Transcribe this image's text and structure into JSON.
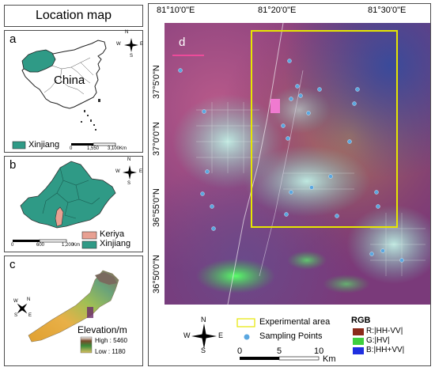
{
  "title": "Location map",
  "panel_a": {
    "letter": "a",
    "country_label": "China",
    "legend_label": "Xinjiang",
    "scale_ticks": [
      "0",
      "1,550",
      "3,100"
    ],
    "scale_unit": "Km",
    "compass": {
      "n": "N",
      "s": "S",
      "e": "E",
      "w": "W"
    }
  },
  "panel_b": {
    "letter": "b",
    "legend": [
      {
        "label": "Keriya",
        "color": "#e8a092"
      },
      {
        "label": "Xinjiang",
        "color": "#2f9a86"
      }
    ],
    "scale_ticks": [
      "0",
      "600",
      "1,200"
    ],
    "scale_unit": "Km",
    "compass": {
      "n": "N",
      "s": "S",
      "e": "E",
      "w": "W"
    }
  },
  "panel_c": {
    "letter": "c",
    "elevation_title": "Elevation/m",
    "high_label": "High : 5460",
    "low_label": "Low : 1180",
    "compass": {
      "n": "N",
      "s": "S",
      "e": "E",
      "w": "W"
    }
  },
  "panel_d": {
    "letter": "d",
    "top_coords": [
      "81°10'0\"E",
      "81°20'0\"E",
      "81°30'0\"E"
    ],
    "left_coords": [
      "37°5'0\"N",
      "37°0'0\"N",
      "36°55'0\"N",
      "36°50'0\"N"
    ],
    "legend": {
      "experimental_area": "Experimental area",
      "sampling_points": "Sampling Points",
      "rgb_title": "RGB",
      "rgb_items": [
        {
          "label": "R:|HH-VV|",
          "color": "#8b2a1a"
        },
        {
          "label": "G:|HV|",
          "color": "#3fcf3f"
        },
        {
          "label": "B:|HH+VV|",
          "color": "#1f2fe0"
        }
      ]
    },
    "scale_ticks": [
      "0",
      "5",
      "10"
    ],
    "scale_unit": "Km",
    "compass": {
      "n": "N",
      "s": "S",
      "e": "E",
      "w": "W"
    },
    "colors": {
      "experimental_area": "#e6e600",
      "sampling_point": "#5aa7e0"
    }
  }
}
